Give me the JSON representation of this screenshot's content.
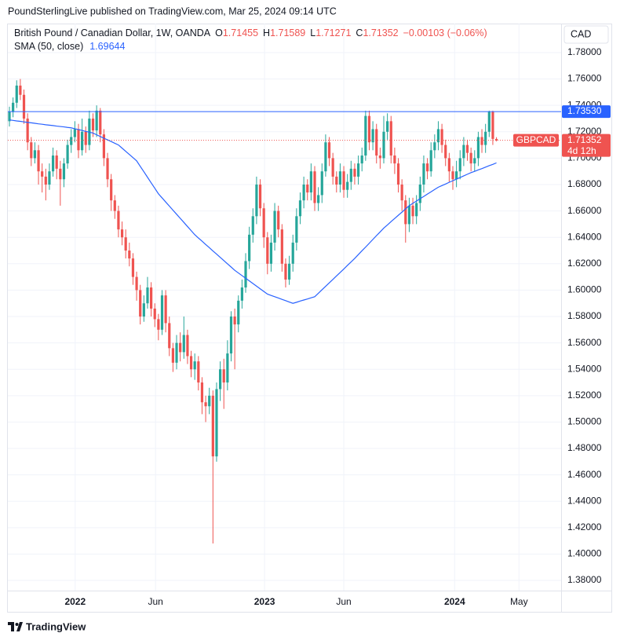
{
  "header": {
    "attribution": "PoundSterlingLive published on TradingView.com, Mar 25, 2024 09:14 UTC",
    "footer": "TradingView"
  },
  "chart_data": {
    "type": "candlestick",
    "title": "British Pound / Canadian Dollar, 1W, OANDA",
    "ohlc_labels": [
      "O",
      "H",
      "L",
      "C"
    ],
    "change": "−0.00103 (−0.06%)",
    "currency": "CAD",
    "symbol": "GBPCAD",
    "countdown": "4d 12h",
    "up_color": "#26a69a",
    "down_color": "#ef5350",
    "open": [
      1.728,
      1.735,
      1.742,
      1.755,
      1.748,
      1.73,
      1.712,
      1.7,
      1.706,
      1.69,
      1.686,
      1.68,
      1.69,
      1.702,
      1.692,
      1.684,
      1.696,
      1.71,
      1.716,
      1.722,
      1.706,
      1.72,
      1.71,
      1.73,
      1.721,
      1.736,
      1.718,
      1.7,
      1.684,
      1.668,
      1.66,
      1.646,
      1.64,
      1.63,
      1.624,
      1.61,
      1.6,
      1.58,
      1.59,
      1.602,
      1.586,
      1.578,
      1.57,
      1.596,
      1.575,
      1.556,
      1.545,
      1.56,
      1.553,
      1.566,
      1.55,
      1.54,
      1.546,
      1.53,
      1.515,
      1.512,
      1.52,
      1.474,
      1.525,
      1.54,
      1.53,
      1.552,
      1.58,
      1.574,
      1.592,
      1.602,
      1.622,
      1.642,
      1.656,
      1.68,
      1.662,
      1.64,
      1.62,
      1.636,
      1.66,
      1.646,
      1.62,
      1.608,
      1.62,
      1.636,
      1.656,
      1.668,
      1.68,
      1.674,
      1.69,
      1.666,
      1.672,
      1.69,
      1.712,
      1.7,
      1.686,
      1.68,
      1.69,
      1.676,
      1.682,
      1.692,
      1.686,
      1.696,
      1.702,
      1.732,
      1.712,
      1.722,
      1.702,
      1.7,
      1.72,
      1.728,
      1.702,
      1.696,
      1.68,
      1.668,
      1.65,
      1.664,
      1.656,
      1.666,
      1.68,
      1.696,
      1.69,
      1.706,
      1.712,
      1.722,
      1.71,
      1.7,
      1.69,
      1.684,
      1.69,
      1.7,
      1.71,
      1.704,
      1.696,
      1.7,
      1.716,
      1.71,
      1.72,
      1.735,
      1.71455
    ],
    "high": [
      1.739,
      1.746,
      1.759,
      1.76,
      1.752,
      1.734,
      1.716,
      1.712,
      1.71,
      1.696,
      1.692,
      1.696,
      1.708,
      1.706,
      1.698,
      1.7,
      1.714,
      1.722,
      1.728,
      1.726,
      1.73,
      1.724,
      1.736,
      1.734,
      1.74,
      1.738,
      1.722,
      1.704,
      1.688,
      1.672,
      1.664,
      1.652,
      1.646,
      1.636,
      1.628,
      1.614,
      1.604,
      1.596,
      1.61,
      1.606,
      1.59,
      1.582,
      1.6,
      1.6,
      1.58,
      1.56,
      1.566,
      1.568,
      1.58,
      1.57,
      1.554,
      1.552,
      1.55,
      1.534,
      1.52,
      1.526,
      1.524,
      1.53,
      1.546,
      1.548,
      1.562,
      1.584,
      1.586,
      1.596,
      1.608,
      1.628,
      1.648,
      1.662,
      1.686,
      1.684,
      1.666,
      1.644,
      1.642,
      1.666,
      1.664,
      1.65,
      1.624,
      1.626,
      1.642,
      1.662,
      1.674,
      1.686,
      1.684,
      1.696,
      1.694,
      1.678,
      1.696,
      1.718,
      1.716,
      1.704,
      1.69,
      1.696,
      1.694,
      1.688,
      1.698,
      1.696,
      1.702,
      1.708,
      1.736,
      1.736,
      1.728,
      1.726,
      1.708,
      1.732,
      1.734,
      1.732,
      1.708,
      1.7,
      1.684,
      1.672,
      1.67,
      1.67,
      1.672,
      1.686,
      1.702,
      1.7,
      1.712,
      1.718,
      1.728,
      1.726,
      1.714,
      1.704,
      1.694,
      1.698,
      1.706,
      1.716,
      1.714,
      1.708,
      1.706,
      1.72,
      1.722,
      1.726,
      1.736,
      1.736,
      1.71589
    ],
    "low": [
      1.724,
      1.731,
      1.738,
      1.744,
      1.726,
      1.706,
      1.694,
      1.696,
      1.68,
      1.674,
      1.668,
      1.676,
      1.686,
      1.684,
      1.664,
      1.678,
      1.692,
      1.704,
      1.712,
      1.7,
      1.702,
      1.704,
      1.706,
      1.716,
      1.716,
      1.712,
      1.694,
      1.678,
      1.66,
      1.654,
      1.64,
      1.634,
      1.624,
      1.618,
      1.604,
      1.592,
      1.574,
      1.576,
      1.586,
      1.58,
      1.572,
      1.562,
      1.566,
      1.568,
      1.55,
      1.538,
      1.54,
      1.546,
      1.548,
      1.544,
      1.534,
      1.532,
      1.524,
      1.506,
      1.5,
      1.506,
      1.408,
      1.47,
      1.516,
      1.51,
      1.524,
      1.546,
      1.54,
      1.568,
      1.586,
      1.598,
      1.616,
      1.636,
      1.65,
      1.656,
      1.632,
      1.612,
      1.614,
      1.63,
      1.64,
      1.614,
      1.602,
      1.604,
      1.614,
      1.63,
      1.65,
      1.662,
      1.668,
      1.668,
      1.66,
      1.66,
      1.666,
      1.686,
      1.694,
      1.68,
      1.674,
      1.674,
      1.67,
      1.67,
      1.676,
      1.68,
      1.68,
      1.69,
      1.698,
      1.706,
      1.706,
      1.696,
      1.692,
      1.696,
      1.714,
      1.696,
      1.688,
      1.674,
      1.66,
      1.636,
      1.644,
      1.65,
      1.65,
      1.66,
      1.674,
      1.684,
      1.686,
      1.7,
      1.706,
      1.704,
      1.694,
      1.682,
      1.676,
      1.678,
      1.684,
      1.694,
      1.698,
      1.69,
      1.69,
      1.694,
      1.704,
      1.704,
      1.716,
      1.71,
      1.71271
    ],
    "close": [
      1.735,
      1.742,
      1.755,
      1.748,
      1.73,
      1.712,
      1.7,
      1.706,
      1.69,
      1.686,
      1.68,
      1.69,
      1.702,
      1.692,
      1.684,
      1.696,
      1.71,
      1.716,
      1.722,
      1.706,
      1.72,
      1.71,
      1.73,
      1.721,
      1.736,
      1.718,
      1.7,
      1.684,
      1.668,
      1.66,
      1.646,
      1.64,
      1.63,
      1.624,
      1.61,
      1.6,
      1.58,
      1.59,
      1.602,
      1.586,
      1.578,
      1.57,
      1.596,
      1.575,
      1.556,
      1.545,
      1.56,
      1.553,
      1.566,
      1.55,
      1.54,
      1.546,
      1.53,
      1.515,
      1.512,
      1.52,
      1.474,
      1.525,
      1.54,
      1.53,
      1.552,
      1.58,
      1.574,
      1.592,
      1.602,
      1.622,
      1.642,
      1.656,
      1.68,
      1.662,
      1.64,
      1.62,
      1.636,
      1.66,
      1.646,
      1.62,
      1.608,
      1.62,
      1.636,
      1.656,
      1.668,
      1.68,
      1.674,
      1.69,
      1.666,
      1.672,
      1.69,
      1.712,
      1.7,
      1.686,
      1.68,
      1.69,
      1.676,
      1.682,
      1.692,
      1.686,
      1.696,
      1.702,
      1.732,
      1.712,
      1.722,
      1.702,
      1.7,
      1.72,
      1.728,
      1.702,
      1.696,
      1.68,
      1.668,
      1.65,
      1.664,
      1.656,
      1.666,
      1.68,
      1.696,
      1.69,
      1.706,
      1.712,
      1.722,
      1.71,
      1.7,
      1.69,
      1.684,
      1.69,
      1.7,
      1.71,
      1.704,
      1.696,
      1.7,
      1.716,
      1.71,
      1.72,
      1.735,
      1.7146,
      1.71352
    ],
    "sma": {
      "name": "SMA (50, close)",
      "color": "#2962ff",
      "values": [
        1.729,
        1.7286,
        1.7282,
        1.7279,
        1.7275,
        1.7271,
        1.7268,
        1.7264,
        1.726,
        1.7257,
        1.7253,
        1.725,
        1.7247,
        1.7243,
        1.724,
        1.7237,
        1.7233,
        1.723,
        1.7223,
        1.7217,
        1.721,
        1.7203,
        1.7197,
        1.719,
        1.7177,
        1.7164,
        1.7151,
        1.7139,
        1.7126,
        1.7113,
        1.71,
        1.7076,
        1.7052,
        1.7028,
        1.7004,
        1.698,
        1.6938,
        1.6897,
        1.6855,
        1.6813,
        1.6772,
        1.673,
        1.6699,
        1.6668,
        1.6637,
        1.6606,
        1.6575,
        1.6544,
        1.6513,
        1.6482,
        1.6451,
        1.642,
        1.6395,
        1.6371,
        1.6346,
        1.6322,
        1.6297,
        1.6273,
        1.6248,
        1.6224,
        1.6199,
        1.6175,
        1.615,
        1.613,
        1.611,
        1.609,
        1.607,
        1.605,
        1.603,
        1.601,
        1.599,
        1.597,
        1.596,
        1.595,
        1.594,
        1.593,
        1.592,
        1.591,
        1.59,
        1.5908,
        1.5917,
        1.5925,
        1.5933,
        1.5942,
        1.595,
        1.5976,
        1.6003,
        1.6029,
        1.6055,
        1.6081,
        1.6108,
        1.6134,
        1.616,
        1.6187,
        1.6213,
        1.624,
        1.6269,
        1.6298,
        1.6326,
        1.6355,
        1.6384,
        1.6413,
        1.6441,
        1.647,
        1.6494,
        1.6519,
        1.6543,
        1.6567,
        1.6591,
        1.6616,
        1.664,
        1.6658,
        1.6675,
        1.6693,
        1.671,
        1.6728,
        1.6745,
        1.6763,
        1.678,
        1.6792,
        1.6804,
        1.6817,
        1.6829,
        1.6841,
        1.6853,
        1.6866,
        1.6878,
        1.689,
        1.69,
        1.6911,
        1.6921,
        1.6932,
        1.6943,
        1.6953,
        1.69644
      ]
    },
    "hline": {
      "value": 1.7353,
      "label": "1.73530",
      "color": "#2962ff"
    },
    "ylim": [
      1.3723,
      1.802
    ],
    "yticks": [
      {
        "value": 1.38,
        "label": "1.38000"
      },
      {
        "value": 1.4,
        "label": "1.40000"
      },
      {
        "value": 1.42,
        "label": "1.42000"
      },
      {
        "value": 1.44,
        "label": "1.44000"
      },
      {
        "value": 1.46,
        "label": "1.46000"
      },
      {
        "value": 1.48,
        "label": "1.48000"
      },
      {
        "value": 1.5,
        "label": "1.50000"
      },
      {
        "value": 1.52,
        "label": "1.52000"
      },
      {
        "value": 1.54,
        "label": "1.54000"
      },
      {
        "value": 1.56,
        "label": "1.56000"
      },
      {
        "value": 1.58,
        "label": "1.58000"
      },
      {
        "value": 1.6,
        "label": "1.60000"
      },
      {
        "value": 1.62,
        "label": "1.62000"
      },
      {
        "value": 1.64,
        "label": "1.64000"
      },
      {
        "value": 1.66,
        "label": "1.66000"
      },
      {
        "value": 1.68,
        "label": "1.68000"
      },
      {
        "value": 1.7,
        "label": "1.70000"
      },
      {
        "value": 1.72,
        "label": "1.72000"
      },
      {
        "value": 1.74,
        "label": "1.74000"
      },
      {
        "value": 1.76,
        "label": "1.76000"
      },
      {
        "value": 1.78,
        "label": "1.78000"
      }
    ],
    "xlim": [
      -0.43,
      151.8
    ],
    "xticks": [
      {
        "value": 18.1,
        "label": "2022"
      },
      {
        "value": 40.2,
        "label": "Jun"
      },
      {
        "value": 70.2,
        "label": "2023"
      },
      {
        "value": 92.0,
        "label": "Jun"
      },
      {
        "value": 122.5,
        "label": "2024"
      },
      {
        "value": 140.2,
        "label": "May"
      }
    ],
    "grid": true
  }
}
